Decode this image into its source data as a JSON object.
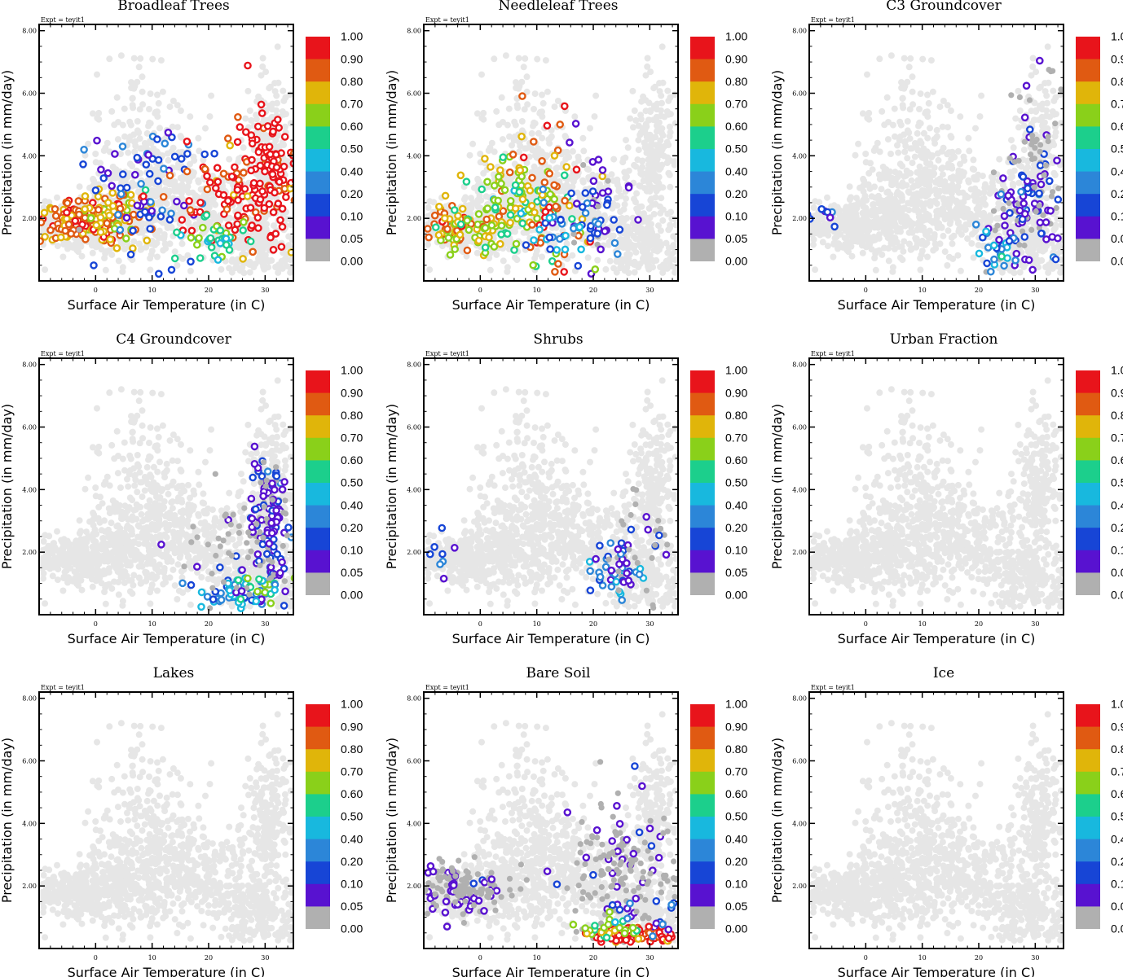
{
  "figure": {
    "experiment_label": "Expt = teyit1"
  },
  "colorbar": {
    "labels": [
      "1.00",
      "0.90",
      "0.80",
      "0.70",
      "0.60",
      "0.50",
      "0.40",
      "0.20",
      "0.10",
      "0.05",
      "0.00"
    ],
    "colors": [
      "#e8141b",
      "#e05a12",
      "#e0b50a",
      "#8ad01a",
      "#1ccf8c",
      "#18b8de",
      "#2c86d8",
      "#1745d6",
      "#5812d0",
      "#b0b0b0",
      "#ffffff"
    ]
  },
  "colors": {
    "background_points": "#e6e6e6",
    "zero_fraction_points": "#b0b0b0"
  },
  "chart_data": [
    {
      "type": "scatter",
      "title": "Broadleaf Trees",
      "xlabel": "Surface Air Temperature (in C)",
      "ylabel": "Precipitation (in mm/day)",
      "xlim": [
        -10,
        35
      ],
      "ylim": [
        0,
        8.2
      ],
      "xticks": [
        "0",
        "10",
        "20",
        "30"
      ],
      "yticks": [
        "2.00",
        "4.00",
        "6.00",
        "8.00"
      ],
      "colored_clusters": [
        {
          "x": -2,
          "y": 1.9,
          "sx": 4,
          "sy": 0.35,
          "n": 140,
          "level": 1
        },
        {
          "x": 4,
          "y": 2.1,
          "sx": 3,
          "sy": 0.4,
          "n": 60,
          "level": 2
        },
        {
          "x": 10,
          "y": 3.0,
          "sx": 6,
          "sy": 1.2,
          "n": 70,
          "level": 7
        },
        {
          "x": 24,
          "y": 2.6,
          "sx": 6,
          "sy": 0.8,
          "n": 90,
          "level": 0
        },
        {
          "x": 31,
          "y": 3.6,
          "sx": 2.5,
          "sy": 1.0,
          "n": 90,
          "level": 0
        },
        {
          "x": 21,
          "y": 1.2,
          "sx": 4,
          "sy": 0.4,
          "n": 35,
          "level": 4
        }
      ]
    },
    {
      "type": "scatter",
      "title": "Needleleaf Trees",
      "xlabel": "Surface Air Temperature (in C)",
      "ylabel": "Precipitation (in mm/day)",
      "xlim": [
        -10,
        35
      ],
      "ylim": [
        0,
        8.2
      ],
      "xticks": [
        "0",
        "10",
        "20",
        "30"
      ],
      "yticks": [
        "2.00",
        "4.00",
        "6.00",
        "8.00"
      ],
      "colored_clusters": [
        {
          "x": -4,
          "y": 1.8,
          "sx": 4,
          "sy": 0.35,
          "n": 90,
          "level": 2
        },
        {
          "x": 6,
          "y": 2.4,
          "sx": 5,
          "sy": 0.8,
          "n": 110,
          "level": 3
        },
        {
          "x": 12,
          "y": 3.0,
          "sx": 4,
          "sy": 1.2,
          "n": 45,
          "level": 1
        },
        {
          "x": 20,
          "y": 2.5,
          "sx": 3,
          "sy": 0.8,
          "n": 45,
          "level": 8
        },
        {
          "x": 16,
          "y": 1.6,
          "sx": 4,
          "sy": 0.5,
          "n": 40,
          "level": 6
        }
      ]
    },
    {
      "type": "scatter",
      "title": "C3 Groundcover",
      "xlabel": "Surface Air Temperature (in C)",
      "ylabel": "Precipitation (in mm/day)",
      "xlim": [
        -10,
        35
      ],
      "ylim": [
        0,
        8.2
      ],
      "xticks": [
        "0",
        "10",
        "20",
        "30"
      ],
      "yticks": [
        "2.00",
        "4.00",
        "6.00",
        "8.00"
      ],
      "colored_clusters": [
        {
          "x": 28,
          "y": 2.4,
          "sx": 3,
          "sy": 0.9,
          "n": 110,
          "level": 8
        },
        {
          "x": 23,
          "y": 1.0,
          "sx": 2,
          "sy": 0.3,
          "n": 25,
          "level": 6
        },
        {
          "x": -8,
          "y": 2.1,
          "sx": 1.5,
          "sy": 0.3,
          "n": 8,
          "level": 7
        },
        {
          "x": 31,
          "y": 4.5,
          "sx": 2,
          "sy": 1.5,
          "n": 40,
          "level": 9
        }
      ]
    },
    {
      "type": "scatter",
      "title": "C4 Groundcover",
      "xlabel": "Surface Air Temperature (in C)",
      "ylabel": "Precipitation (in mm/day)",
      "xlim": [
        -10,
        35
      ],
      "ylim": [
        0,
        8.2
      ],
      "xticks": [
        "0",
        "10",
        "20",
        "30"
      ],
      "yticks": [
        "2.00",
        "4.00",
        "6.00",
        "8.00"
      ],
      "colored_clusters": [
        {
          "x": 31,
          "y": 3.0,
          "sx": 2,
          "sy": 1.2,
          "n": 130,
          "level": 8
        },
        {
          "x": 25,
          "y": 0.7,
          "sx": 3,
          "sy": 0.3,
          "n": 50,
          "level": 6
        },
        {
          "x": 28,
          "y": 0.8,
          "sx": 4,
          "sy": 0.3,
          "n": 20,
          "level": 4
        },
        {
          "x": 24,
          "y": 2.2,
          "sx": 5,
          "sy": 1.0,
          "n": 50,
          "level": 9
        }
      ]
    },
    {
      "type": "scatter",
      "title": "Shrubs",
      "xlabel": "Surface Air Temperature (in C)",
      "ylabel": "Precipitation (in mm/day)",
      "xlim": [
        -10,
        35
      ],
      "ylim": [
        0,
        8.2
      ],
      "xticks": [
        "0",
        "10",
        "20",
        "30"
      ],
      "yticks": [
        "2.00",
        "4.00",
        "6.00",
        "8.00"
      ],
      "colored_clusters": [
        {
          "x": 24,
          "y": 1.2,
          "sx": 2.5,
          "sy": 0.4,
          "n": 30,
          "level": 6
        },
        {
          "x": 26,
          "y": 1.6,
          "sx": 3,
          "sy": 0.4,
          "n": 20,
          "level": 8
        },
        {
          "x": -7,
          "y": 2.1,
          "sx": 2,
          "sy": 0.3,
          "n": 8,
          "level": 7
        },
        {
          "x": 28,
          "y": 2.5,
          "sx": 3,
          "sy": 1.0,
          "n": 25,
          "level": 9
        }
      ]
    },
    {
      "type": "scatter",
      "title": "Urban Fraction",
      "xlabel": "Surface Air Temperature (in C)",
      "ylabel": "Precipitation (in mm/day)",
      "xlim": [
        -10,
        35
      ],
      "ylim": [
        0,
        8.2
      ],
      "xticks": [
        "0",
        "10",
        "20",
        "30"
      ],
      "yticks": [
        "2.00",
        "4.00",
        "6.00",
        "8.00"
      ],
      "colored_clusters": []
    },
    {
      "type": "scatter",
      "title": "Lakes",
      "xlabel": "Surface Air Temperature (in C)",
      "ylabel": "Precipitation (in mm/day)",
      "xlim": [
        -10,
        35
      ],
      "ylim": [
        0,
        8.2
      ],
      "xticks": [
        "0",
        "10",
        "20",
        "30"
      ],
      "yticks": [
        "2.00",
        "4.00",
        "6.00",
        "8.00"
      ],
      "colored_clusters": []
    },
    {
      "type": "scatter",
      "title": "Bare Soil",
      "xlabel": "Surface Air Temperature (in C)",
      "ylabel": "Precipitation (in mm/day)",
      "xlim": [
        -10,
        35
      ],
      "ylim": [
        0,
        8.2
      ],
      "xticks": [
        "0",
        "10",
        "20",
        "30"
      ],
      "yticks": [
        "2.00",
        "4.00",
        "6.00",
        "8.00"
      ],
      "colored_clusters": [
        {
          "x": -3,
          "y": 1.9,
          "sx": 4,
          "sy": 0.4,
          "n": 150,
          "level": 9
        },
        {
          "x": 26,
          "y": 2.4,
          "sx": 5,
          "sy": 1.1,
          "n": 170,
          "level": 9
        },
        {
          "x": 27,
          "y": 0.4,
          "sx": 4,
          "sy": 0.15,
          "n": 70,
          "level": 0
        },
        {
          "x": 23,
          "y": 0.7,
          "sx": 3,
          "sy": 0.2,
          "n": 25,
          "level": 3
        },
        {
          "x": 31,
          "y": 1.0,
          "sx": 3,
          "sy": 0.3,
          "n": 15,
          "level": 7
        }
      ]
    },
    {
      "type": "scatter",
      "title": "Ice",
      "xlabel": "Surface Air Temperature (in C)",
      "ylabel": "Precipitation (in mm/day)",
      "xlim": [
        -10,
        35
      ],
      "ylim": [
        0,
        8.2
      ],
      "xticks": [
        "0",
        "10",
        "20",
        "30"
      ],
      "yticks": [
        "2.00",
        "4.00",
        "6.00",
        "8.00"
      ],
      "colored_clusters": []
    }
  ]
}
